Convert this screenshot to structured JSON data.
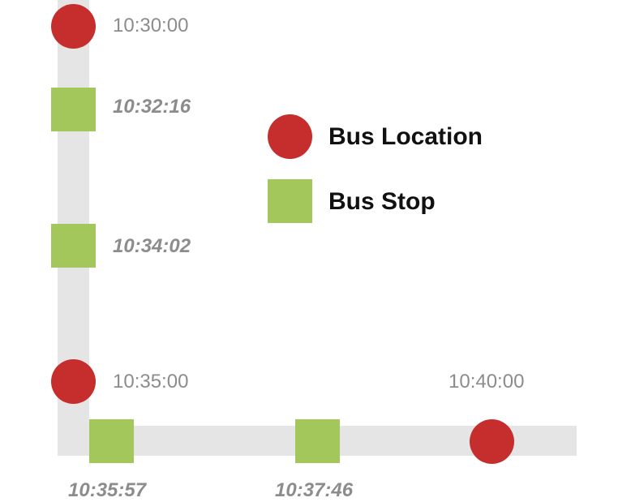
{
  "colors": {
    "bus_location": "#c52e2c",
    "bus_stop": "#a3c75a",
    "road": "#e5e5e5",
    "time_text": "#8c8c8c",
    "legend_text": "#111111"
  },
  "legend": {
    "bus_location_label": "Bus Location",
    "bus_stop_label": "Bus Stop"
  },
  "bus_locations": [
    {
      "time": "10:30:00"
    },
    {
      "time": "10:35:00"
    },
    {
      "time": "10:40:00"
    }
  ],
  "bus_stops": [
    {
      "time": "10:32:16"
    },
    {
      "time": "10:34:02"
    },
    {
      "time": "10:35:57"
    },
    {
      "time": "10:37:46"
    }
  ]
}
